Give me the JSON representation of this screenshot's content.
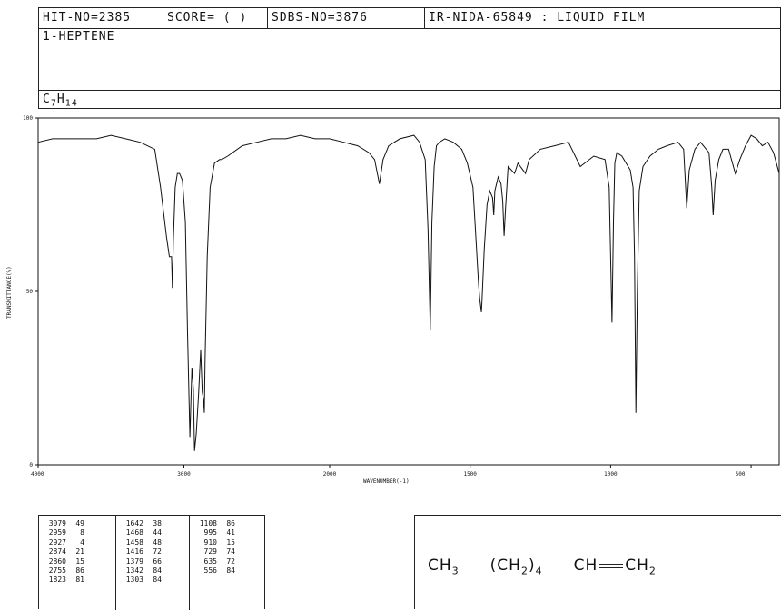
{
  "header": {
    "hit_no": "HIT-NO=2385",
    "score": "SCORE=  (   )",
    "sdbs_no": "SDBS-NO=3876",
    "ir_nida": "IR-NIDA-65849 : LIQUID FILM",
    "compound": "1-HEPTENE",
    "formula": {
      "c": "C",
      "c_n": "7",
      "h": "H",
      "h_n": "14"
    }
  },
  "chart_data": {
    "type": "line",
    "xlabel": "WAVENUMBER(-1)",
    "ylabel": "TRANSMITTANCE(%)",
    "xlim": [
      4000,
      400
    ],
    "ylim": [
      0,
      100
    ],
    "x_ticks": [
      "4000",
      "3000",
      "2000",
      "1500",
      "1000",
      "500"
    ],
    "y_ticks": [
      "0",
      "50",
      "100"
    ],
    "x_axis_break": "scale change at 2000",
    "series": [
      {
        "x": [
          4000,
          3900,
          3700,
          3600,
          3500,
          3400,
          3300,
          3200,
          3160,
          3120,
          3100,
          3085,
          3079,
          3072,
          3060,
          3045,
          3030,
          3010,
          2990,
          2975,
          2959,
          2945,
          2935,
          2927,
          2915,
          2900,
          2885,
          2874,
          2866,
          2860,
          2855,
          2840,
          2820,
          2790,
          2755,
          2740,
          2700,
          2600,
          2500,
          2400,
          2300,
          2200,
          2100,
          2000,
          1950,
          1900,
          1860,
          1840,
          1823,
          1810,
          1790,
          1750,
          1700,
          1680,
          1660,
          1650,
          1642,
          1636,
          1628,
          1620,
          1610,
          1590,
          1560,
          1530,
          1510,
          1490,
          1480,
          1470,
          1466,
          1460,
          1458,
          1450,
          1440,
          1430,
          1420,
          1416,
          1412,
          1400,
          1390,
          1384,
          1379,
          1374,
          1365,
          1342,
          1330,
          1303,
          1290,
          1250,
          1200,
          1150,
          1108,
          1060,
          1020,
          1005,
          995,
          990,
          985,
          978,
          960,
          945,
          930,
          920,
          915,
          910,
          905,
          898,
          885,
          860,
          830,
          800,
          760,
          740,
          729,
          720,
          700,
          680,
          650,
          640,
          635,
          628,
          615,
          600,
          580,
          556,
          540,
          520,
          500,
          480,
          460,
          440,
          420,
          400
        ],
        "y": [
          93,
          94,
          94,
          94,
          95,
          94,
          93,
          91,
          80,
          66,
          60,
          60,
          51,
          65,
          80,
          84,
          84,
          82,
          70,
          38,
          8,
          28,
          22,
          4,
          9,
          20,
          33,
          21,
          19,
          15,
          30,
          60,
          80,
          87,
          88,
          88,
          89,
          92,
          93,
          94,
          94,
          95,
          94,
          94,
          93,
          92,
          90,
          88,
          81,
          88,
          92,
          94,
          95,
          93,
          88,
          68,
          39,
          70,
          86,
          92,
          93,
          94,
          93,
          91,
          87,
          80,
          66,
          52,
          48,
          44,
          47,
          62,
          75,
          79,
          77,
          72,
          79,
          83,
          81,
          76,
          66,
          74,
          86,
          84,
          87,
          84,
          88,
          91,
          92,
          93,
          86,
          89,
          88,
          80,
          41,
          70,
          87,
          90,
          89,
          87,
          85,
          80,
          60,
          15,
          50,
          79,
          86,
          89,
          91,
          92,
          93,
          91,
          74,
          85,
          91,
          93,
          90,
          80,
          72,
          82,
          88,
          91,
          91,
          84,
          88,
          92,
          95,
          94,
          92,
          93,
          90,
          84
        ]
      }
    ],
    "peak_table": [
      [
        [
          "3079",
          "49"
        ],
        [
          "2959",
          "8"
        ],
        [
          "2927",
          "4"
        ],
        [
          "2874",
          "21"
        ],
        [
          "2860",
          "15"
        ],
        [
          "2755",
          "86"
        ],
        [
          "1823",
          "81"
        ]
      ],
      [
        [
          "1642",
          "38"
        ],
        [
          "1468",
          "44"
        ],
        [
          "1458",
          "48"
        ],
        [
          "1416",
          "72"
        ],
        [
          "1379",
          "66"
        ],
        [
          "1342",
          "84"
        ],
        [
          "1303",
          "84"
        ]
      ],
      [
        [
          "1108",
          "86"
        ],
        [
          "995",
          "41"
        ],
        [
          "910",
          "15"
        ],
        [
          "729",
          "74"
        ],
        [
          "635",
          "72"
        ],
        [
          "556",
          "84"
        ]
      ]
    ]
  },
  "structure": {
    "g1": "CH",
    "g1_sub": "3",
    "g2": "(CH",
    "g2_sub": "2",
    "g2_close": ")",
    "g2_n": "4",
    "g3": "CH",
    "g4": "CH",
    "g4_sub": "2"
  }
}
